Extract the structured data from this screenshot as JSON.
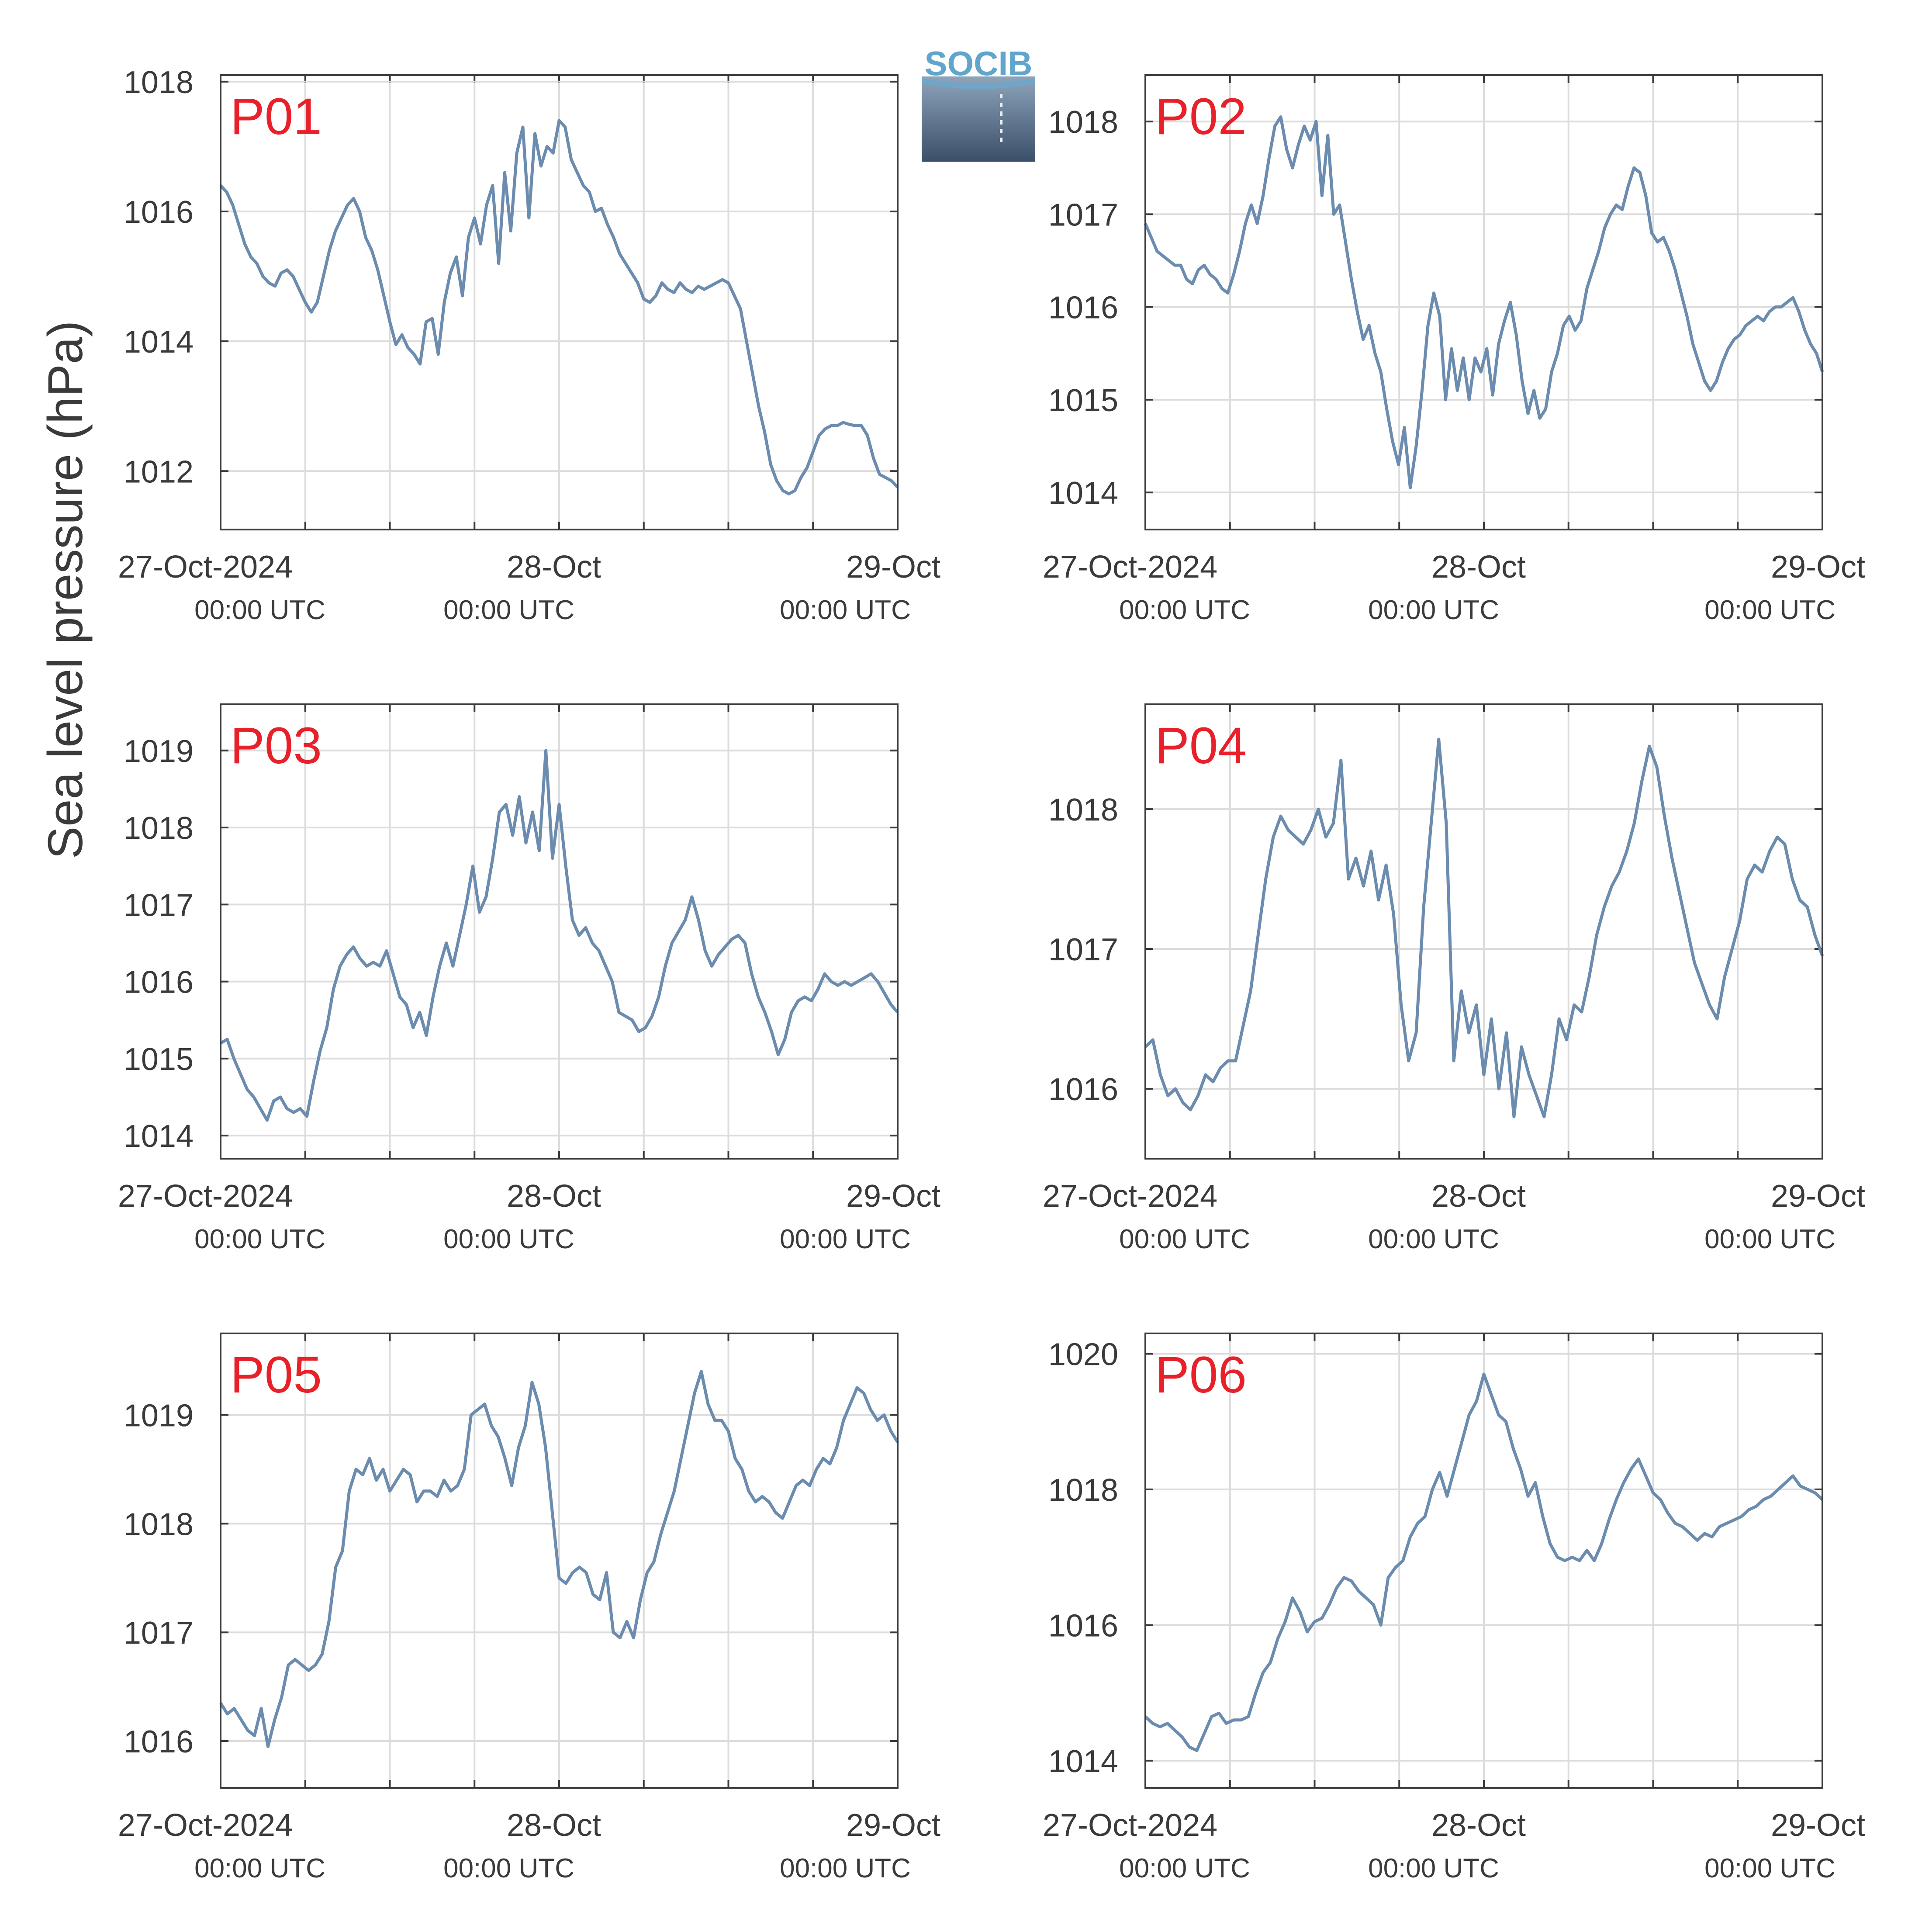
{
  "figure": {
    "ylabel": "Sea level pressure (hPa)",
    "logo_text": "SOCIB",
    "colors": {
      "line": "#6b8cae",
      "panel_label": "#e8202a",
      "grid": "#dcdcdc",
      "axes": "#3a3a3a",
      "text": "#3a3a3a"
    }
  },
  "chart_data": [
    {
      "type": "line",
      "panel_label": "P01",
      "series": [
        {
          "values": [
            1016.4,
            1016.3,
            1016.1,
            1015.8,
            1015.5,
            1015.3,
            1015.2,
            1015.0,
            1014.9,
            1014.85,
            1015.05,
            1015.1,
            1015.0,
            1014.8,
            1014.6,
            1014.45,
            1014.6,
            1015.0,
            1015.4,
            1015.7,
            1015.9,
            1016.1,
            1016.2,
            1016.0,
            1015.6,
            1015.4,
            1015.1,
            1014.7,
            1014.3,
            1013.95,
            1014.1,
            1013.9,
            1013.8,
            1013.65,
            1014.3,
            1014.35,
            1013.8,
            1014.6,
            1015.05,
            1015.3,
            1014.7,
            1015.6,
            1015.9,
            1015.5,
            1016.1,
            1016.4,
            1015.2,
            1016.6,
            1015.7,
            1016.9,
            1017.3,
            1015.9,
            1017.2,
            1016.7,
            1017.0,
            1016.9,
            1017.4,
            1017.3,
            1016.8,
            1016.6,
            1016.4,
            1016.3,
            1016.0,
            1016.05,
            1015.8,
            1015.6,
            1015.35,
            1015.2,
            1015.05,
            1014.9,
            1014.65,
            1014.6,
            1014.7,
            1014.9,
            1014.8,
            1014.75,
            1014.9,
            1014.8,
            1014.75,
            1014.85,
            1014.8,
            1014.85,
            1014.9,
            1014.95,
            1014.9,
            1014.7,
            1014.5,
            1014.0,
            1013.5,
            1013.0,
            1012.6,
            1012.1,
            1011.85,
            1011.7,
            1011.65,
            1011.7,
            1011.9,
            1012.05,
            1012.3,
            1012.55,
            1012.65,
            1012.7,
            1012.7,
            1012.75,
            1012.72,
            1012.7,
            1012.7,
            1012.55,
            1012.2,
            1011.95,
            1011.9,
            1011.85,
            1011.75
          ]
        }
      ],
      "x_ticks": [
        [
          "27-Oct-2024",
          "00:00 UTC"
        ],
        [
          "28-Oct",
          "00:00 UTC"
        ],
        [
          "29-Oct",
          "00:00 UTC"
        ]
      ],
      "y_ticks": [
        "1012",
        "1014",
        "1016",
        "1018"
      ],
      "ylim": [
        1011.1,
        1018.1
      ],
      "grid": true
    },
    {
      "type": "line",
      "panel_label": "P02",
      "series": [
        {
          "values": [
            1016.9,
            1016.75,
            1016.6,
            1016.55,
            1016.5,
            1016.45,
            1016.45,
            1016.3,
            1016.25,
            1016.4,
            1016.45,
            1016.35,
            1016.3,
            1016.2,
            1016.15,
            1016.35,
            1016.6,
            1016.9,
            1017.1,
            1016.9,
            1017.2,
            1017.6,
            1017.95,
            1018.05,
            1017.7,
            1017.5,
            1017.75,
            1017.95,
            1017.8,
            1018.0,
            1017.2,
            1017.85,
            1017.0,
            1017.1,
            1016.7,
            1016.3,
            1015.95,
            1015.65,
            1015.8,
            1015.5,
            1015.3,
            1014.9,
            1014.55,
            1014.3,
            1014.7,
            1014.05,
            1014.5,
            1015.1,
            1015.8,
            1016.15,
            1015.9,
            1015.0,
            1015.55,
            1015.1,
            1015.45,
            1015.0,
            1015.45,
            1015.3,
            1015.55,
            1015.05,
            1015.6,
            1015.85,
            1016.05,
            1015.7,
            1015.2,
            1014.85,
            1015.1,
            1014.8,
            1014.9,
            1015.3,
            1015.5,
            1015.8,
            1015.9,
            1015.75,
            1015.85,
            1016.2,
            1016.4,
            1016.6,
            1016.85,
            1017.0,
            1017.1,
            1017.05,
            1017.3,
            1017.5,
            1017.45,
            1017.2,
            1016.8,
            1016.7,
            1016.75,
            1016.6,
            1016.4,
            1016.15,
            1015.9,
            1015.6,
            1015.4,
            1015.2,
            1015.1,
            1015.2,
            1015.4,
            1015.55,
            1015.65,
            1015.7,
            1015.8,
            1015.85,
            1015.9,
            1015.85,
            1015.95,
            1016.0,
            1016.0,
            1016.05,
            1016.1,
            1015.95,
            1015.75,
            1015.6,
            1015.5,
            1015.3
          ]
        }
      ],
      "x_ticks": [
        [
          "27-Oct-2024",
          "00:00 UTC"
        ],
        [
          "28-Oct",
          "00:00 UTC"
        ],
        [
          "29-Oct",
          "00:00 UTC"
        ]
      ],
      "y_ticks": [
        "1014",
        "1015",
        "1016",
        "1017",
        "1018"
      ],
      "ylim": [
        1013.6,
        1018.5
      ],
      "grid": true
    },
    {
      "type": "line",
      "panel_label": "P03",
      "series": [
        {
          "values": [
            1015.2,
            1015.25,
            1015.0,
            1014.8,
            1014.6,
            1014.5,
            1014.35,
            1014.2,
            1014.45,
            1014.5,
            1014.35,
            1014.3,
            1014.35,
            1014.25,
            1014.7,
            1015.1,
            1015.4,
            1015.9,
            1016.2,
            1016.35,
            1016.45,
            1016.3,
            1016.2,
            1016.25,
            1016.2,
            1016.4,
            1016.1,
            1015.8,
            1015.7,
            1015.4,
            1015.6,
            1015.3,
            1015.8,
            1016.2,
            1016.5,
            1016.2,
            1016.6,
            1017.0,
            1017.5,
            1016.9,
            1017.1,
            1017.6,
            1018.2,
            1018.3,
            1017.9,
            1018.4,
            1017.8,
            1018.2,
            1017.7,
            1019.0,
            1017.6,
            1018.3,
            1017.5,
            1016.8,
            1016.6,
            1016.7,
            1016.5,
            1016.4,
            1016.2,
            1016.0,
            1015.6,
            1015.55,
            1015.5,
            1015.35,
            1015.4,
            1015.55,
            1015.8,
            1016.2,
            1016.5,
            1016.65,
            1016.8,
            1017.1,
            1016.8,
            1016.4,
            1016.2,
            1016.35,
            1016.45,
            1016.55,
            1016.6,
            1016.5,
            1016.1,
            1015.8,
            1015.6,
            1015.35,
            1015.05,
            1015.25,
            1015.6,
            1015.75,
            1015.8,
            1015.75,
            1015.9,
            1016.1,
            1016.0,
            1015.95,
            1016.0,
            1015.95,
            1016.0,
            1016.05,
            1016.1,
            1016.0,
            1015.85,
            1015.7,
            1015.6
          ]
        }
      ],
      "x_ticks": [
        [
          "27-Oct-2024",
          "00:00 UTC"
        ],
        [
          "28-Oct",
          "00:00 UTC"
        ],
        [
          "29-Oct",
          "00:00 UTC"
        ]
      ],
      "y_ticks": [
        "1014",
        "1015",
        "1016",
        "1017",
        "1018",
        "1019"
      ],
      "ylim": [
        1013.7,
        1019.6
      ],
      "grid": true
    },
    {
      "type": "line",
      "panel_label": "P04",
      "series": [
        {
          "values": [
            1016.3,
            1016.35,
            1016.1,
            1015.95,
            1016.0,
            1015.9,
            1015.85,
            1015.95,
            1016.1,
            1016.05,
            1016.15,
            1016.2,
            1016.2,
            1016.45,
            1016.7,
            1017.1,
            1017.5,
            1017.8,
            1017.95,
            1017.85,
            1017.8,
            1017.75,
            1017.85,
            1018.0,
            1017.8,
            1017.9,
            1018.35,
            1017.5,
            1017.65,
            1017.45,
            1017.7,
            1017.35,
            1017.6,
            1017.25,
            1016.6,
            1016.2,
            1016.4,
            1017.3,
            1017.9,
            1018.5,
            1017.9,
            1016.2,
            1016.7,
            1016.4,
            1016.6,
            1016.1,
            1016.5,
            1016.0,
            1016.4,
            1015.8,
            1016.3,
            1016.1,
            1015.95,
            1015.8,
            1016.1,
            1016.5,
            1016.35,
            1016.6,
            1016.55,
            1016.8,
            1017.1,
            1017.3,
            1017.45,
            1017.55,
            1017.7,
            1017.9,
            1018.2,
            1018.45,
            1018.3,
            1017.95,
            1017.65,
            1017.4,
            1017.15,
            1016.9,
            1016.75,
            1016.6,
            1016.5,
            1016.8,
            1017.0,
            1017.2,
            1017.5,
            1017.6,
            1017.55,
            1017.7,
            1017.8,
            1017.75,
            1017.5,
            1017.35,
            1017.3,
            1017.1,
            1016.95
          ]
        }
      ],
      "x_ticks": [
        [
          "27-Oct-2024",
          "00:00 UTC"
        ],
        [
          "28-Oct",
          "00:00 UTC"
        ],
        [
          "29-Oct",
          "00:00 UTC"
        ]
      ],
      "y_ticks": [
        "1016",
        "1017",
        "1018"
      ],
      "ylim": [
        1015.5,
        1018.75
      ],
      "grid": true
    },
    {
      "type": "line",
      "panel_label": "P05",
      "series": [
        {
          "values": [
            1016.35,
            1016.25,
            1016.3,
            1016.2,
            1016.1,
            1016.05,
            1016.3,
            1015.95,
            1016.2,
            1016.4,
            1016.7,
            1016.75,
            1016.7,
            1016.65,
            1016.7,
            1016.8,
            1017.1,
            1017.6,
            1017.75,
            1018.3,
            1018.5,
            1018.45,
            1018.6,
            1018.4,
            1018.5,
            1018.3,
            1018.4,
            1018.5,
            1018.45,
            1018.2,
            1018.3,
            1018.3,
            1018.25,
            1018.4,
            1018.3,
            1018.35,
            1018.5,
            1019.0,
            1019.05,
            1019.1,
            1018.9,
            1018.8,
            1018.6,
            1018.35,
            1018.7,
            1018.9,
            1019.3,
            1019.1,
            1018.7,
            1018.1,
            1017.5,
            1017.45,
            1017.55,
            1017.6,
            1017.55,
            1017.35,
            1017.3,
            1017.55,
            1017.0,
            1016.95,
            1017.1,
            1016.95,
            1017.3,
            1017.55,
            1017.65,
            1017.9,
            1018.1,
            1018.3,
            1018.6,
            1018.9,
            1019.2,
            1019.4,
            1019.1,
            1018.95,
            1018.95,
            1018.85,
            1018.6,
            1018.5,
            1018.3,
            1018.2,
            1018.25,
            1018.2,
            1018.1,
            1018.05,
            1018.2,
            1018.35,
            1018.4,
            1018.35,
            1018.5,
            1018.6,
            1018.55,
            1018.7,
            1018.95,
            1019.1,
            1019.25,
            1019.2,
            1019.05,
            1018.95,
            1019.0,
            1018.85,
            1018.75
          ]
        }
      ],
      "x_ticks": [
        [
          "27-Oct-2024",
          "00:00 UTC"
        ],
        [
          "28-Oct",
          "00:00 UTC"
        ],
        [
          "29-Oct",
          "00:00 UTC"
        ]
      ],
      "y_ticks": [
        "1016",
        "1017",
        "1018",
        "1019"
      ],
      "ylim": [
        1015.57,
        1019.75
      ],
      "grid": true
    },
    {
      "type": "line",
      "panel_label": "P06",
      "series": [
        {
          "values": [
            1014.65,
            1014.55,
            1014.5,
            1014.55,
            1014.45,
            1014.35,
            1014.2,
            1014.15,
            1014.4,
            1014.65,
            1014.7,
            1014.55,
            1014.6,
            1014.6,
            1014.65,
            1015.0,
            1015.3,
            1015.45,
            1015.8,
            1016.05,
            1016.4,
            1016.2,
            1015.9,
            1016.05,
            1016.1,
            1016.3,
            1016.55,
            1016.7,
            1016.65,
            1016.5,
            1016.4,
            1016.3,
            1016.0,
            1016.7,
            1016.85,
            1016.95,
            1017.3,
            1017.5,
            1017.6,
            1018.0,
            1018.25,
            1017.9,
            1018.3,
            1018.7,
            1019.1,
            1019.3,
            1019.7,
            1019.4,
            1019.1,
            1019.0,
            1018.6,
            1018.3,
            1017.9,
            1018.1,
            1017.6,
            1017.2,
            1017.0,
            1016.95,
            1017.0,
            1016.95,
            1017.1,
            1016.95,
            1017.2,
            1017.55,
            1017.85,
            1018.1,
            1018.3,
            1018.45,
            1018.2,
            1017.95,
            1017.85,
            1017.65,
            1017.5,
            1017.45,
            1017.35,
            1017.25,
            1017.35,
            1017.3,
            1017.45,
            1017.5,
            1017.55,
            1017.6,
            1017.7,
            1017.75,
            1017.85,
            1017.9,
            1018.0,
            1018.1,
            1018.2,
            1018.05,
            1018.0,
            1017.95,
            1017.85
          ]
        }
      ],
      "x_ticks": [
        [
          "27-Oct-2024",
          "00:00 UTC"
        ],
        [
          "28-Oct",
          "00:00 UTC"
        ],
        [
          "29-Oct",
          "00:00 UTC"
        ]
      ],
      "y_ticks": [
        "1014",
        "1016",
        "1018",
        "1020"
      ],
      "ylim": [
        1013.6,
        1020.3
      ],
      "grid": true
    }
  ]
}
